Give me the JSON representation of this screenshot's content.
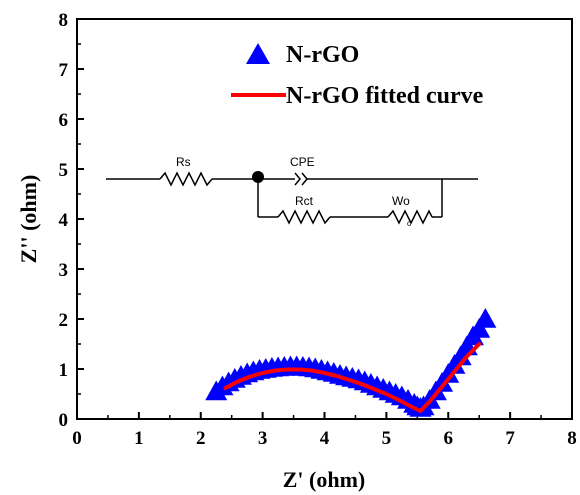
{
  "chart_data": {
    "type": "scatter",
    "xlabel": "Z' (ohm)",
    "ylabel": "Z'' (ohm)",
    "xlim": [
      0,
      8
    ],
    "ylim": [
      0,
      8
    ],
    "x_ticks": [
      "0",
      "1",
      "2",
      "3",
      "4",
      "5",
      "6",
      "7",
      "8"
    ],
    "y_ticks": [
      "0",
      "1",
      "2",
      "3",
      "4",
      "5",
      "6",
      "7",
      "8"
    ],
    "legend_position": "top-center",
    "series": [
      {
        "name": "N-rGO",
        "kind": "scatter",
        "marker": "triangle",
        "color": "#0000ff",
        "x": [
          2.25,
          2.35,
          2.45,
          2.55,
          2.65,
          2.75,
          2.85,
          2.95,
          3.05,
          3.15,
          3.25,
          3.35,
          3.45,
          3.55,
          3.65,
          3.75,
          3.85,
          3.95,
          4.05,
          4.15,
          4.25,
          4.35,
          4.45,
          4.55,
          4.65,
          4.75,
          4.85,
          4.95,
          5.05,
          5.15,
          5.25,
          5.35,
          5.45,
          5.5,
          5.55,
          5.6,
          5.7,
          5.8,
          5.9,
          6.0,
          6.1,
          6.2,
          6.3,
          6.4,
          6.5,
          6.6
        ],
        "y": [
          0.55,
          0.65,
          0.73,
          0.8,
          0.86,
          0.91,
          0.95,
          0.98,
          1.0,
          1.02,
          1.03,
          1.04,
          1.05,
          1.05,
          1.04,
          1.03,
          1.01,
          0.98,
          0.95,
          0.92,
          0.88,
          0.85,
          0.82,
          0.79,
          0.75,
          0.7,
          0.65,
          0.6,
          0.55,
          0.5,
          0.45,
          0.38,
          0.3,
          0.25,
          0.22,
          0.25,
          0.38,
          0.55,
          0.72,
          0.9,
          1.08,
          1.25,
          1.45,
          1.65,
          1.8,
          2.0
        ]
      },
      {
        "name": "N-rGO fitted curve",
        "kind": "line",
        "color": "#ff0000",
        "x": [
          2.4,
          2.6,
          2.8,
          3.0,
          3.2,
          3.4,
          3.6,
          3.8,
          4.0,
          4.2,
          4.4,
          4.6,
          4.8,
          5.0,
          5.2,
          5.4,
          5.55,
          5.7,
          5.9,
          6.1,
          6.3,
          6.5
        ],
        "y": [
          0.62,
          0.75,
          0.85,
          0.92,
          0.97,
          0.99,
          0.99,
          0.97,
          0.92,
          0.86,
          0.78,
          0.7,
          0.6,
          0.5,
          0.38,
          0.25,
          0.16,
          0.35,
          0.65,
          0.95,
          1.25,
          1.5
        ]
      }
    ],
    "inset_circuit": {
      "labels": [
        "Rs",
        "CPE",
        "Rct",
        "Wo"
      ],
      "subscript": "o"
    }
  }
}
